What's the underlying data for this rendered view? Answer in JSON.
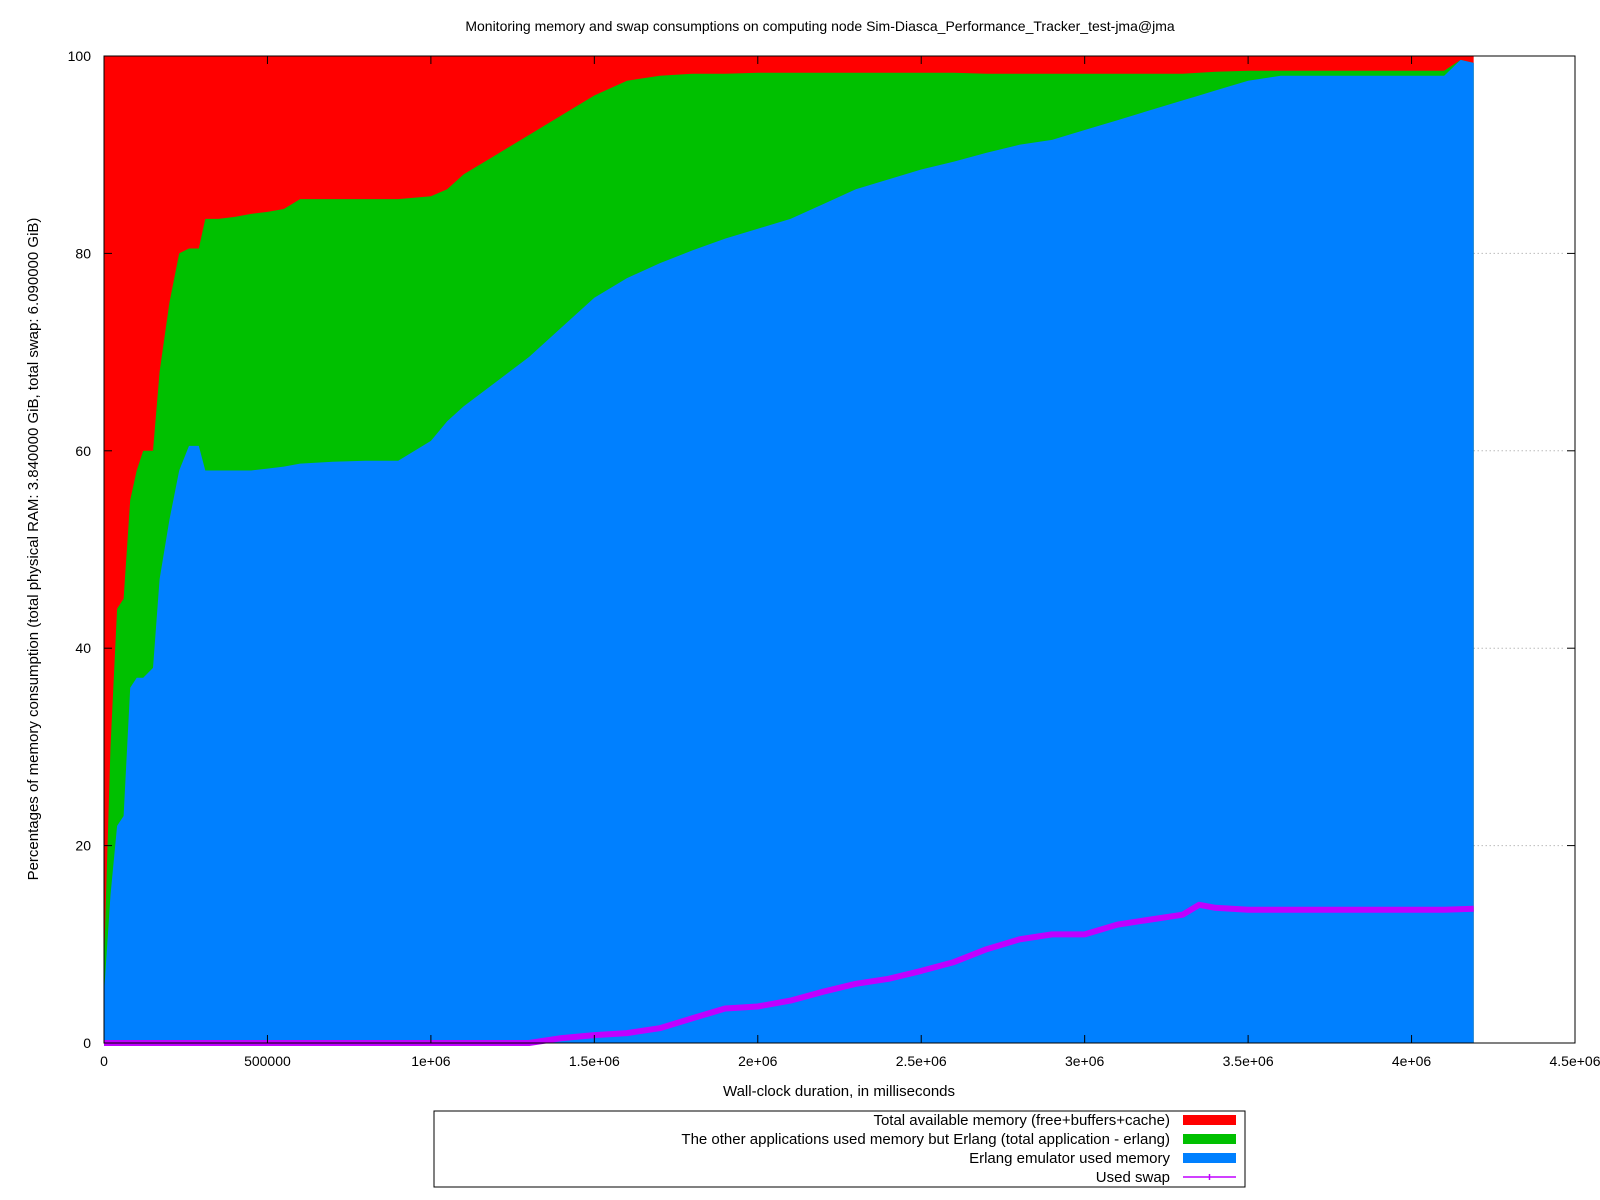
{
  "chart_data": {
    "type": "area",
    "title": "Monitoring memory and swap consumptions on computing node Sim-Diasca_Performance_Tracker_test-jma@jma",
    "xlabel": "Wall-clock duration, in milliseconds",
    "ylabel": "Percentages of memory consumption (total physical RAM: 3.840000 GiB, total swap: 6.090000 GiB)",
    "xlim": [
      0,
      4500000
    ],
    "ylim": [
      0,
      100
    ],
    "x_ticks": [
      0,
      500000,
      1000000,
      1500000,
      2000000,
      2500000,
      3000000,
      3500000,
      4000000,
      4500000
    ],
    "x_tick_labels": [
      "0",
      "500000",
      "1e+06",
      "1.5e+06",
      "2e+06",
      "2.5e+06",
      "3e+06",
      "3.5e+06",
      "4e+06",
      "4.5e+06"
    ],
    "y_ticks": [
      0,
      20,
      40,
      60,
      80,
      100
    ],
    "y_tick_labels": [
      "0",
      "20",
      "40",
      "60",
      "80",
      "100"
    ],
    "grid": "horizontal-dotted",
    "legend_position": "bottom-center",
    "series": [
      {
        "name": "Total available memory (free+buffers+cache)",
        "color": "#ff0000",
        "kind": "stack-top",
        "x": [
          0,
          4190000
        ],
        "values": [
          100,
          100
        ]
      },
      {
        "name": "The other applications used memory but Erlang (total application - erlang)",
        "color": "#00c000",
        "kind": "cumulative-top",
        "x": [
          0,
          20000,
          40000,
          60000,
          80000,
          100000,
          120000,
          150000,
          170000,
          200000,
          230000,
          260000,
          290000,
          310000,
          350000,
          400000,
          450000,
          500000,
          550000,
          600000,
          700000,
          800000,
          900000,
          1000000,
          1050000,
          1100000,
          1200000,
          1300000,
          1400000,
          1500000,
          1600000,
          1700000,
          1800000,
          1900000,
          2000000,
          2100000,
          2200000,
          2300000,
          2400000,
          2500000,
          2600000,
          2700000,
          2800000,
          2900000,
          3000000,
          3100000,
          3200000,
          3300000,
          3350000,
          3400000,
          3500000,
          3600000,
          3700000,
          3800000,
          3900000,
          4000000,
          4100000,
          4150000,
          4190000
        ],
        "values": [
          8,
          30,
          44,
          45,
          55,
          58,
          60,
          60,
          68,
          75,
          80,
          80.5,
          80.5,
          83.5,
          83.5,
          83.7,
          84,
          84.2,
          84.5,
          85.5,
          85.5,
          85.5,
          85.5,
          85.8,
          86.5,
          88,
          90,
          92,
          94,
          96,
          97.5,
          98,
          98.2,
          98.2,
          98.3,
          98.3,
          98.3,
          98.3,
          98.3,
          98.3,
          98.3,
          98.2,
          98.2,
          98.2,
          98.2,
          98.2,
          98.2,
          98.2,
          98.3,
          98.4,
          98.5,
          98.5,
          98.5,
          98.5,
          98.5,
          98.5,
          98.5,
          99.6,
          99.3
        ]
      },
      {
        "name": "Erlang emulator used memory",
        "color": "#0080ff",
        "kind": "base",
        "x": [
          0,
          20000,
          40000,
          60000,
          80000,
          100000,
          120000,
          150000,
          170000,
          200000,
          230000,
          260000,
          290000,
          310000,
          350000,
          400000,
          450000,
          500000,
          550000,
          600000,
          700000,
          800000,
          900000,
          1000000,
          1050000,
          1100000,
          1200000,
          1300000,
          1400000,
          1500000,
          1600000,
          1700000,
          1800000,
          1900000,
          2000000,
          2100000,
          2200000,
          2300000,
          2400000,
          2500000,
          2600000,
          2700000,
          2800000,
          2900000,
          3000000,
          3100000,
          3200000,
          3300000,
          3350000,
          3400000,
          3500000,
          3600000,
          3700000,
          3800000,
          3900000,
          4000000,
          4100000,
          4150000,
          4190000
        ],
        "values": [
          5,
          15,
          22,
          23,
          36,
          37,
          37,
          38,
          47,
          53,
          58,
          60.5,
          60.5,
          58,
          58,
          58,
          58,
          58.2,
          58.4,
          58.7,
          58.9,
          59,
          59,
          61,
          63,
          64.5,
          67,
          69.5,
          72.5,
          75.5,
          77.5,
          79,
          80.3,
          81.5,
          82.5,
          83.5,
          85,
          86.5,
          87.5,
          88.5,
          89.3,
          90.2,
          91,
          91.5,
          92.5,
          93.5,
          94.5,
          95.5,
          96,
          96.5,
          97.5,
          98,
          98,
          98,
          98,
          98,
          98,
          99.6,
          99.3
        ]
      },
      {
        "name": "Used swap",
        "color": "#c000ff",
        "kind": "line",
        "x": [
          0,
          500000,
          1000000,
          1300000,
          1400000,
          1500000,
          1600000,
          1700000,
          1800000,
          1900000,
          2000000,
          2100000,
          2200000,
          2300000,
          2400000,
          2500000,
          2600000,
          2700000,
          2800000,
          2900000,
          3000000,
          3100000,
          3200000,
          3300000,
          3350000,
          3400000,
          3500000,
          3600000,
          3700000,
          3800000,
          3900000,
          4000000,
          4100000,
          4190000
        ],
        "values": [
          0,
          0,
          0,
          0,
          0.5,
          0.8,
          1,
          1.5,
          2.5,
          3.5,
          3.7,
          4.3,
          5.2,
          6,
          6.5,
          7.3,
          8.2,
          9.5,
          10.5,
          11,
          11,
          12,
          12.5,
          13,
          14,
          13.7,
          13.5,
          13.5,
          13.5,
          13.5,
          13.5,
          13.5,
          13.5,
          13.6
        ]
      }
    ]
  }
}
